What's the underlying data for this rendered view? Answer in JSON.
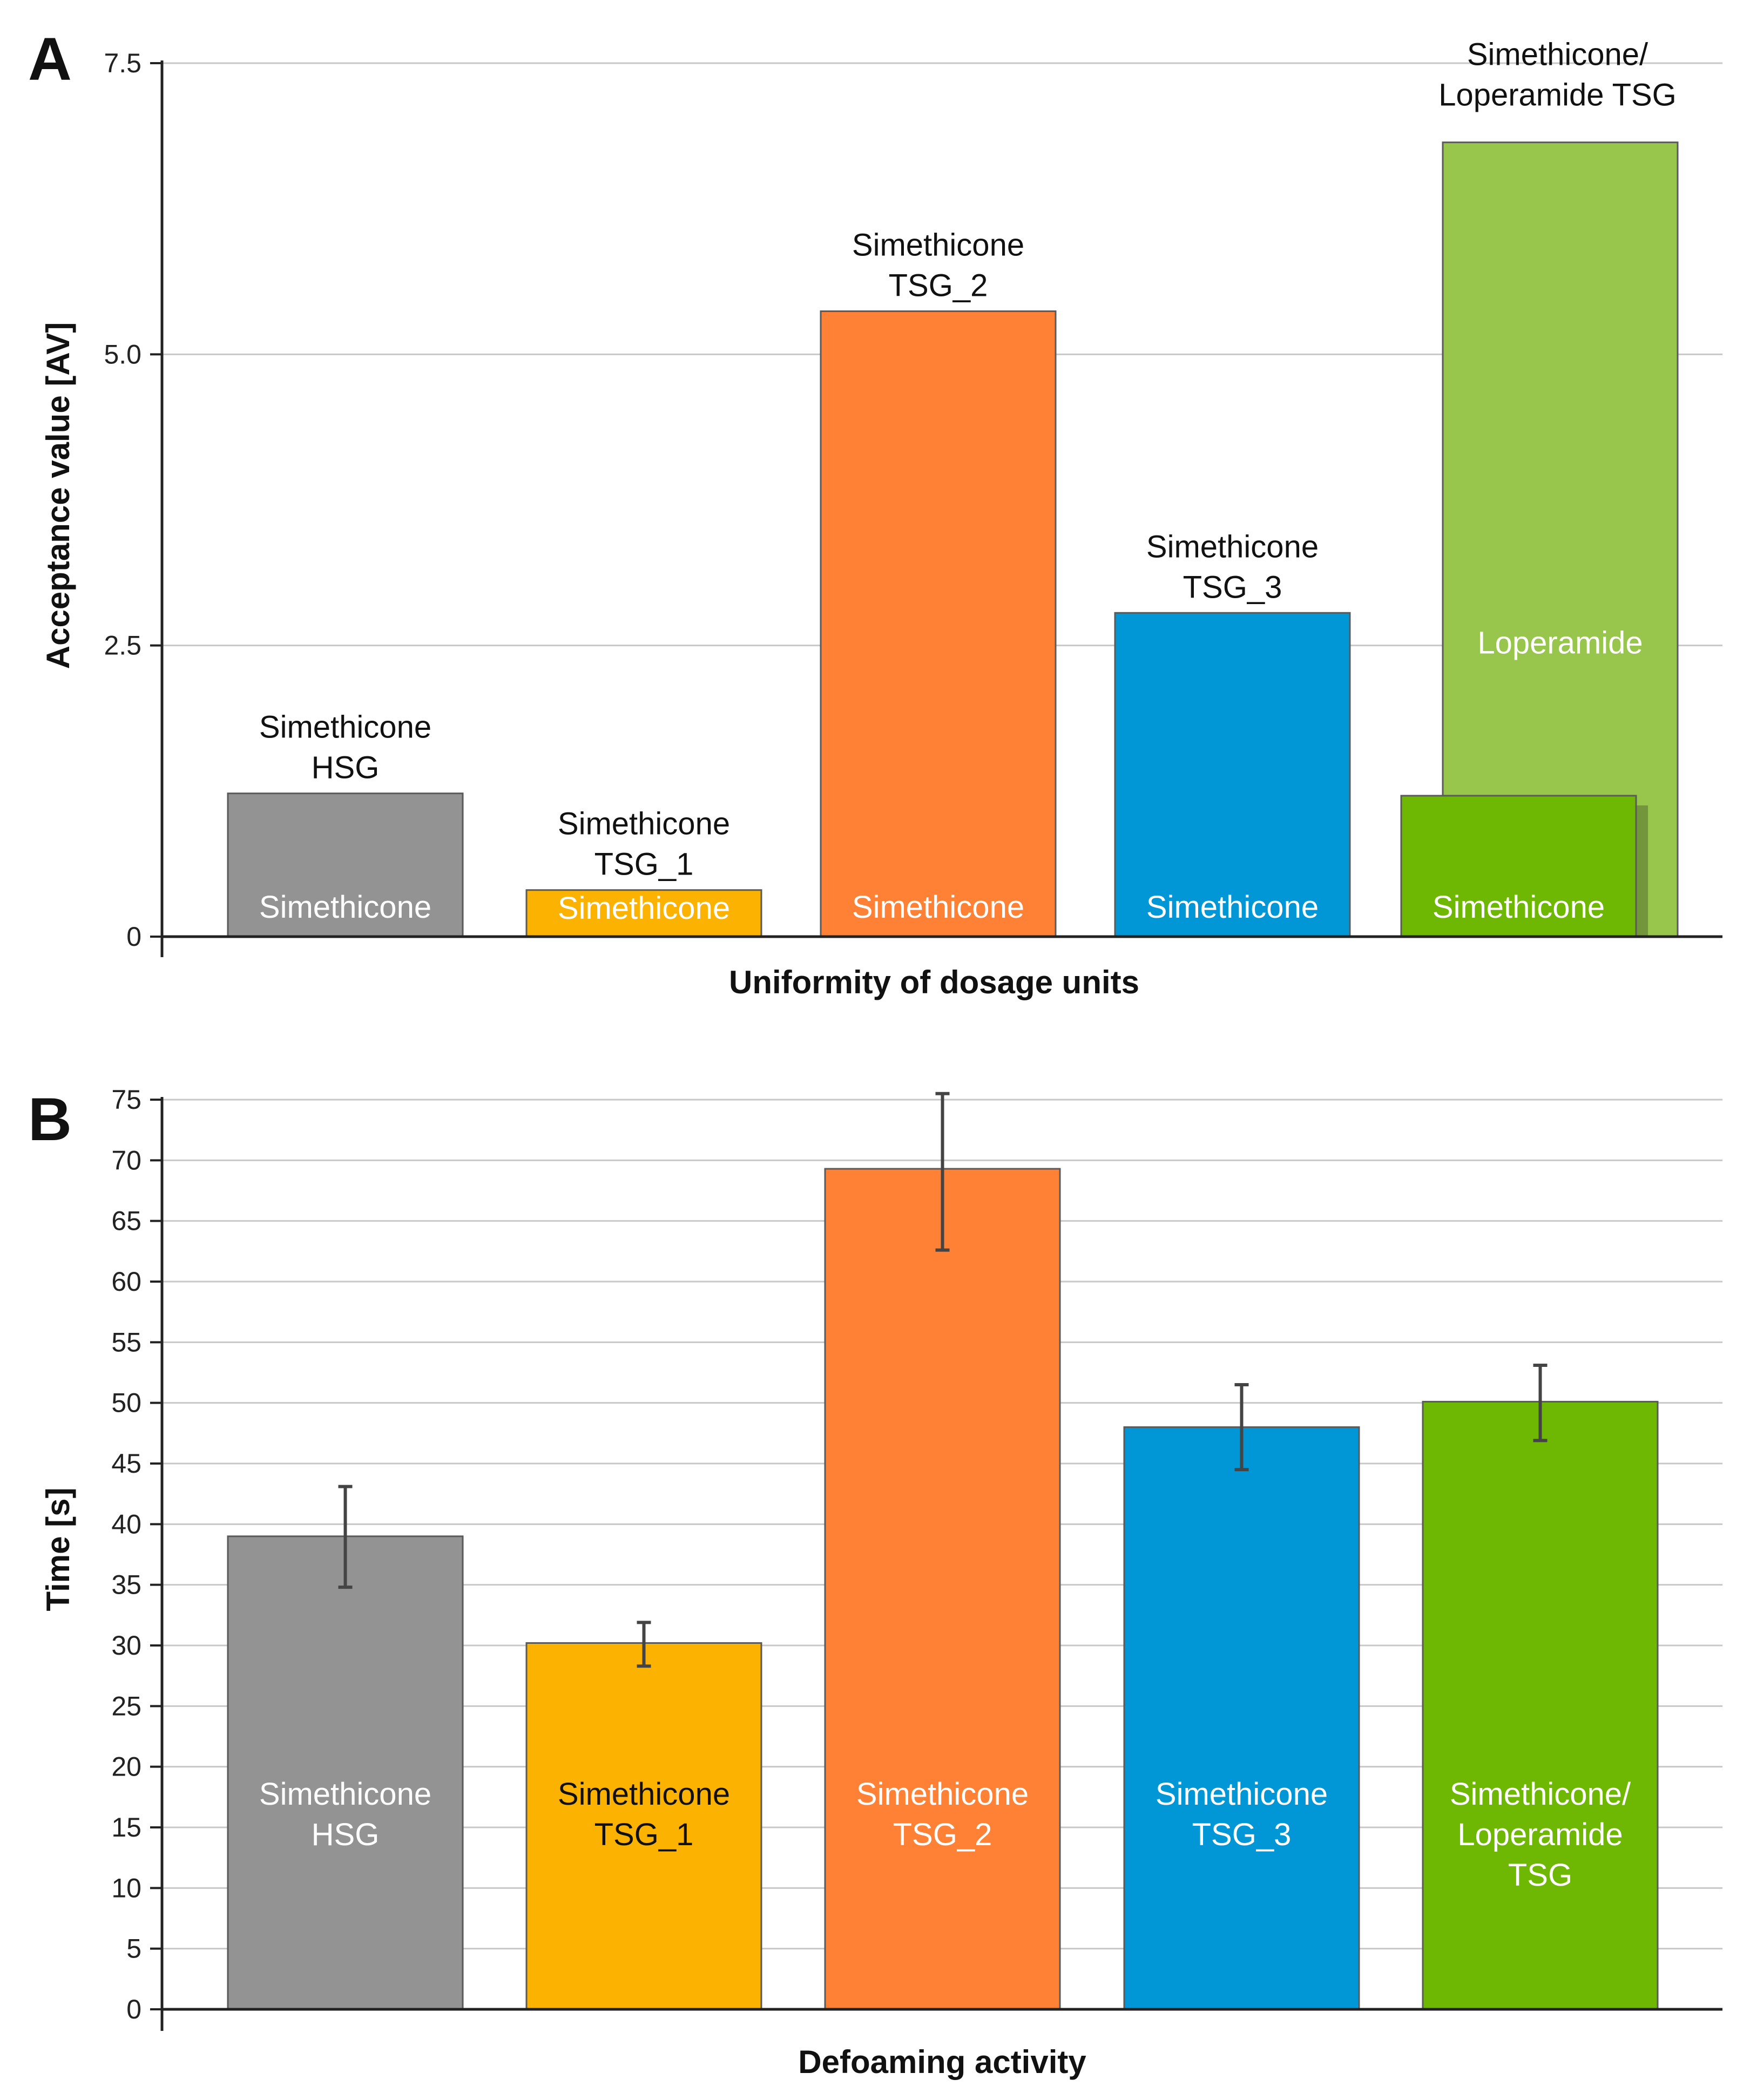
{
  "chart_data": [
    {
      "panel": "A",
      "type": "bar",
      "title": "",
      "xlabel": "Uniformity of dosage units",
      "ylabel": "Acceptance value [AV]",
      "ylim": [
        0,
        7.5
      ],
      "yticks": [
        "0",
        "2.5",
        "5.0",
        "7.5"
      ],
      "ytick_values": [
        0,
        2.5,
        5.0,
        7.5
      ],
      "grid": true,
      "categories": [
        {
          "top_label": [
            "Simethicone",
            "HSG"
          ],
          "inner_label": "Simethicone",
          "value": 1.23,
          "color": "#939393"
        },
        {
          "top_label": [
            "Simethicone",
            "TSG_1"
          ],
          "inner_label": "Simethicone",
          "value": 0.4,
          "color": "#fbb200"
        },
        {
          "top_label": [
            "Simethicone",
            "TSG_2"
          ],
          "inner_label": "Simethicone",
          "value": 5.37,
          "color": "#ff8135"
        },
        {
          "top_label": [
            "Simethicone",
            "TSG_3"
          ],
          "inner_label": "Simethicone",
          "value": 2.78,
          "color": "#0196d5"
        }
      ],
      "combined": {
        "top_label": [
          "Simethicone/",
          "Loperamide TSG"
        ],
        "series": [
          {
            "name": "Loperamide",
            "value": 6.82,
            "color": "#98c54b"
          },
          {
            "name": "Simethicone",
            "value": 1.21,
            "color": "#6eb703"
          }
        ]
      }
    },
    {
      "panel": "B",
      "type": "bar",
      "title": "",
      "xlabel": "Defoaming activity",
      "ylabel": "Time [s]",
      "ylim": [
        0,
        75
      ],
      "yticks": [
        "0",
        "5",
        "10",
        "15",
        "20",
        "25",
        "30",
        "35",
        "40",
        "45",
        "50",
        "55",
        "60",
        "65",
        "70",
        "75"
      ],
      "ytick_values": [
        0,
        5,
        10,
        15,
        20,
        25,
        30,
        35,
        40,
        45,
        50,
        55,
        60,
        65,
        70,
        75
      ],
      "grid": true,
      "categories": [
        {
          "label": [
            "Simethicone",
            "HSG"
          ],
          "value": 39.0,
          "error_low": 34.8,
          "error_high": 43.1,
          "color": "#939393",
          "label_color": "#ffffff"
        },
        {
          "label": [
            "Simethicone",
            "TSG_1"
          ],
          "value": 30.2,
          "error_low": 28.3,
          "error_high": 31.9,
          "color": "#fbb200",
          "label_color": "#111111"
        },
        {
          "label": [
            "Simethicone",
            "TSG_2"
          ],
          "value": 69.3,
          "error_low": 62.6,
          "error_high": 75.5,
          "color": "#ff8135",
          "label_color": "#ffffff"
        },
        {
          "label": [
            "Simethicone",
            "TSG_3"
          ],
          "value": 48.0,
          "error_low": 44.5,
          "error_high": 51.5,
          "color": "#0196d5",
          "label_color": "#ffffff"
        },
        {
          "label": [
            "Simethicone/",
            "Loperamide",
            "TSG"
          ],
          "value": 50.1,
          "error_low": 46.9,
          "error_high": 53.1,
          "color": "#6eb703",
          "label_color": "#ffffff"
        }
      ]
    }
  ]
}
